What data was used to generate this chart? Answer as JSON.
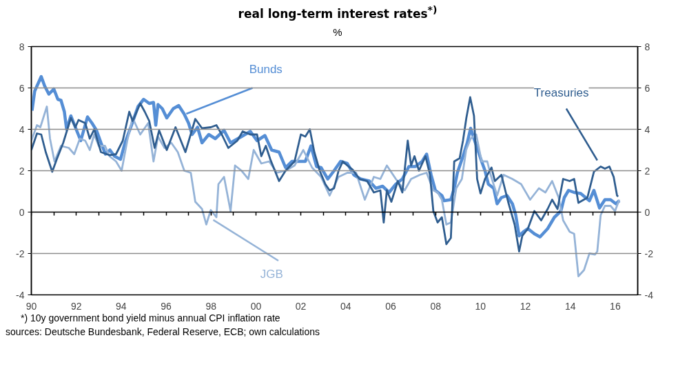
{
  "chart_data": {
    "type": "line",
    "title": "real long-term interest rates$^{*)}$",
    "subtitle": "%",
    "annotations": [
      "*) 10y government bond yield minus annual CPI inflation rate",
      "sources: Deutsche Bundesbank, Federal Reserve, ECB; own calculations"
    ],
    "xlim": [
      1990,
      2017
    ],
    "ylim": [
      -4,
      8
    ],
    "yticks": [
      -4,
      -2,
      0,
      2,
      4,
      6,
      8
    ],
    "y2lim": [
      -4,
      8
    ],
    "y2ticks": [
      -4,
      -2,
      0,
      2,
      4,
      6,
      8
    ],
    "xticks": [
      {
        "value": 1990,
        "label": "90"
      },
      {
        "value": 1992,
        "label": "92"
      },
      {
        "value": 1994,
        "label": "94"
      },
      {
        "value": 1996,
        "label": "96"
      },
      {
        "value": 1998,
        "label": "98"
      },
      {
        "value": 2000,
        "label": "00"
      },
      {
        "value": 2002,
        "label": "02"
      },
      {
        "value": 2004,
        "label": "04"
      },
      {
        "value": 2006,
        "label": "06"
      },
      {
        "value": 2008,
        "label": "08"
      },
      {
        "value": 2010,
        "label": "10"
      },
      {
        "value": 2012,
        "label": "12"
      },
      {
        "value": 2014,
        "label": "14"
      },
      {
        "value": 2016,
        "label": "16"
      },
      {
        "value": 1991,
        "label": null
      },
      {
        "value": 1993,
        "label": null
      },
      {
        "value": 1995,
        "label": null
      },
      {
        "value": 1997,
        "label": null
      },
      {
        "value": 1999,
        "label": null
      },
      {
        "value": 2001,
        "label": null
      },
      {
        "value": 2003,
        "label": null
      },
      {
        "value": 2005,
        "label": null
      },
      {
        "value": 2007,
        "label": null
      },
      {
        "value": 2009,
        "label": null
      },
      {
        "value": 2011,
        "label": null
      },
      {
        "value": 2013,
        "label": null
      },
      {
        "value": 2015,
        "label": null
      }
    ],
    "grid": "y",
    "marker": "none",
    "line_style": "solid",
    "series": [
      {
        "name": "Bunds",
        "color": "#558ed5",
        "x": [
          1990.03,
          1990.15,
          1990.44,
          1990.59,
          1990.78,
          1991.0,
          1991.18,
          1991.32,
          1991.47,
          1991.57,
          1991.76,
          1991.96,
          1992.2,
          1992.5,
          1992.7,
          1992.9,
          1993.1,
          1993.3,
          1993.5,
          1993.7,
          1993.97,
          1994.17,
          1994.46,
          1994.75,
          1995.0,
          1995.25,
          1995.44,
          1995.54,
          1995.64,
          1995.83,
          1996.03,
          1996.32,
          1996.56,
          1996.8,
          1997.0,
          1997.16,
          1997.4,
          1997.6,
          1997.9,
          1998.19,
          1998.58,
          1998.87,
          1999.36,
          1999.75,
          2000.05,
          2000.4,
          2000.7,
          2001.03,
          2001.32,
          2001.6,
          2001.9,
          2002.2,
          2002.45,
          2002.7,
          2002.9,
          2003.2,
          2003.48,
          2003.77,
          2004.07,
          2004.36,
          2004.66,
          2005.05,
          2005.34,
          2005.64,
          2005.93,
          2006.23,
          2006.52,
          2006.81,
          2007.1,
          2007.4,
          2007.6,
          2007.8,
          2007.99,
          2008.28,
          2008.38,
          2008.68,
          2008.83,
          2008.97,
          2009.22,
          2009.41,
          2009.56,
          2009.71,
          2009.85,
          2010.05,
          2010.2,
          2010.35,
          2010.59,
          2010.74,
          2010.93,
          2011.18,
          2011.42,
          2011.57,
          2011.72,
          2011.91,
          2012.11,
          2012.4,
          2012.65,
          2012.99,
          2013.29,
          2013.58,
          2013.73,
          2013.92,
          2014.17,
          2014.46,
          2014.85,
          2015.05,
          2015.3,
          2015.54,
          2015.79,
          2016.03,
          2016.18
        ],
        "values": [
          4.9,
          5.85,
          6.55,
          6.1,
          5.7,
          5.95,
          5.45,
          5.4,
          4.85,
          4.0,
          4.65,
          4.1,
          3.45,
          4.6,
          4.3,
          3.95,
          3.35,
          2.8,
          3.0,
          2.7,
          2.55,
          3.35,
          4.2,
          5.1,
          5.45,
          5.25,
          5.3,
          4.2,
          5.2,
          5.0,
          4.55,
          5.0,
          5.15,
          4.75,
          4.3,
          3.75,
          4.1,
          3.35,
          3.75,
          3.55,
          3.95,
          3.35,
          3.65,
          3.9,
          3.45,
          3.7,
          3.0,
          2.9,
          2.15,
          2.45,
          2.45,
          2.45,
          3.2,
          2.2,
          2.15,
          1.6,
          2.0,
          2.45,
          2.35,
          1.8,
          1.6,
          1.5,
          1.15,
          1.25,
          0.95,
          1.35,
          1.6,
          2.2,
          2.2,
          2.45,
          2.8,
          1.8,
          1.05,
          0.8,
          0.55,
          0.6,
          1.15,
          1.9,
          2.7,
          3.35,
          4.05,
          3.55,
          3.1,
          2.45,
          2.0,
          1.35,
          1.15,
          0.4,
          0.7,
          0.8,
          0.4,
          -0.15,
          -1.15,
          -0.95,
          -0.8,
          -1.05,
          -1.2,
          -0.8,
          -0.25,
          0.05,
          0.7,
          1.05,
          0.95,
          0.9,
          0.55,
          1.05,
          0.2,
          0.6,
          0.6,
          0.4,
          0.55
        ]
      },
      {
        "name": "Treasuries",
        "color": "#2f5d8f",
        "x": [
          1990.0,
          1990.25,
          1990.44,
          1990.64,
          1990.93,
          1991.13,
          1991.42,
          1991.76,
          1991.96,
          1992.1,
          1992.4,
          1992.6,
          1992.8,
          1993.1,
          1993.48,
          1993.77,
          1994.07,
          1994.36,
          1994.51,
          1994.85,
          1995.05,
          1995.25,
          1995.49,
          1995.69,
          1996.03,
          1996.42,
          1996.86,
          1997.3,
          1997.6,
          1997.99,
          1998.24,
          1998.48,
          1998.77,
          1999.17,
          1999.41,
          1999.75,
          2000.05,
          2000.24,
          2000.44,
          2000.64,
          2001.03,
          2001.32,
          2001.72,
          2002.0,
          2002.2,
          2002.4,
          2002.6,
          2002.84,
          2003.09,
          2003.28,
          2003.48,
          2003.68,
          2003.87,
          2004.07,
          2004.31,
          2004.61,
          2004.95,
          2005.25,
          2005.54,
          2005.69,
          2005.83,
          2006.03,
          2006.32,
          2006.52,
          2006.76,
          2006.91,
          2007.06,
          2007.26,
          2007.55,
          2007.75,
          2007.9,
          2008.09,
          2008.28,
          2008.48,
          2008.68,
          2008.83,
          2009.07,
          2009.22,
          2009.37,
          2009.54,
          2009.71,
          2009.85,
          2010.0,
          2010.2,
          2010.49,
          2010.64,
          2010.93,
          2011.23,
          2011.52,
          2011.72,
          2011.86,
          2012.11,
          2012.4,
          2012.7,
          2012.99,
          2013.19,
          2013.43,
          2013.68,
          2013.97,
          2014.17,
          2014.36,
          2014.76,
          2015.05,
          2015.35,
          2015.54,
          2015.74,
          2015.93,
          2016.08,
          2016.13
        ],
        "values": [
          3.0,
          3.8,
          3.75,
          2.9,
          1.95,
          2.55,
          3.35,
          4.55,
          4.1,
          4.45,
          4.3,
          3.55,
          4.0,
          2.9,
          2.75,
          2.8,
          3.45,
          4.85,
          4.4,
          5.25,
          4.85,
          4.4,
          3.1,
          3.95,
          3.0,
          4.1,
          2.9,
          4.5,
          4.05,
          4.1,
          4.2,
          3.75,
          3.1,
          3.45,
          3.9,
          3.75,
          3.75,
          2.7,
          3.2,
          2.55,
          1.5,
          2.0,
          2.45,
          3.75,
          3.65,
          4.0,
          2.9,
          2.0,
          1.35,
          1.05,
          1.15,
          2.0,
          2.45,
          2.25,
          2.05,
          1.6,
          1.5,
          0.95,
          1.05,
          -0.5,
          1.05,
          0.5,
          1.5,
          0.95,
          3.45,
          2.25,
          2.7,
          2.0,
          2.7,
          1.8,
          0.05,
          -0.5,
          -0.25,
          -1.55,
          -1.25,
          2.45,
          2.6,
          3.45,
          4.55,
          5.55,
          4.65,
          1.6,
          0.9,
          1.6,
          2.15,
          1.5,
          1.8,
          0.5,
          -0.6,
          -1.9,
          -1.15,
          -0.8,
          0.05,
          -0.4,
          0.15,
          0.6,
          0.15,
          1.6,
          1.5,
          1.6,
          0.45,
          0.7,
          1.95,
          2.2,
          2.1,
          2.2,
          1.7,
          0.8,
          0.75
        ]
      },
      {
        "name": "JGB",
        "color": "#95b3d7",
        "x": [
          1990.0,
          1990.25,
          1990.4,
          1990.69,
          1990.83,
          1991.03,
          1991.32,
          1991.67,
          1991.91,
          1992.16,
          1992.4,
          1992.6,
          1992.8,
          1993.0,
          1993.28,
          1993.48,
          1993.77,
          1994.02,
          1994.27,
          1994.51,
          1994.85,
          1995.2,
          1995.44,
          1995.64,
          1995.93,
          1996.23,
          1996.52,
          1996.81,
          1997.1,
          1997.3,
          1997.6,
          1997.79,
          1997.99,
          1998.24,
          1998.33,
          1998.58,
          1998.87,
          1999.07,
          1999.36,
          1999.66,
          1999.9,
          2000.24,
          2000.59,
          2000.93,
          2001.32,
          2001.72,
          2002.11,
          2002.5,
          2002.9,
          2003.28,
          2003.68,
          2004.07,
          2004.46,
          2004.85,
          2005.25,
          2005.54,
          2005.83,
          2006.23,
          2006.62,
          2006.91,
          2007.3,
          2007.6,
          2007.9,
          2008.09,
          2008.28,
          2008.48,
          2008.68,
          2008.92,
          2009.17,
          2009.36,
          2009.56,
          2009.81,
          2010.05,
          2010.3,
          2010.45,
          2010.74,
          2011.03,
          2011.42,
          2011.81,
          2012.21,
          2012.6,
          2012.89,
          2013.19,
          2013.48,
          2013.68,
          2013.97,
          2014.17,
          2014.36,
          2014.61,
          2014.85,
          2015.1,
          2015.2,
          2015.35,
          2015.54,
          2015.79,
          2015.99,
          2016.18
        ],
        "values": [
          3.45,
          4.2,
          4.1,
          5.1,
          3.55,
          2.45,
          3.2,
          3.1,
          2.8,
          3.55,
          3.45,
          3.0,
          3.75,
          3.2,
          3.2,
          2.7,
          2.45,
          2.0,
          3.45,
          4.55,
          3.75,
          4.3,
          2.45,
          3.65,
          3.1,
          3.35,
          2.9,
          2.0,
          1.9,
          0.5,
          0.15,
          -0.6,
          0.1,
          -0.25,
          1.35,
          1.7,
          0.05,
          2.25,
          2.0,
          1.6,
          3.0,
          2.35,
          2.45,
          1.9,
          2.0,
          2.25,
          3.0,
          2.15,
          1.7,
          0.8,
          1.7,
          1.9,
          1.9,
          0.6,
          1.7,
          1.6,
          2.25,
          1.6,
          1.05,
          1.6,
          1.8,
          1.9,
          1.05,
          0.95,
          0.6,
          -0.6,
          -0.5,
          1.15,
          1.6,
          3.0,
          3.55,
          3.75,
          2.45,
          2.45,
          1.8,
          0.8,
          1.8,
          1.6,
          1.35,
          0.6,
          1.15,
          0.95,
          1.5,
          0.7,
          -0.4,
          -0.95,
          -1.05,
          -3.1,
          -2.8,
          -2.0,
          -2.05,
          -1.9,
          -0.15,
          0.3,
          0.3,
          0.05,
          0.6
        ]
      }
    ]
  }
}
